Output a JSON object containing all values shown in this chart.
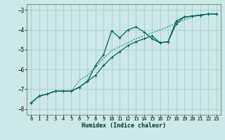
{
  "title": "",
  "xlabel": "Humidex (Indice chaleur)",
  "bg_color": "#cce8e8",
  "grid_color": "#aacccc",
  "line_color": "#006666",
  "xlim": [
    -0.5,
    23.5
  ],
  "ylim": [
    -8.3,
    -2.7
  ],
  "xticks": [
    0,
    1,
    2,
    3,
    4,
    5,
    6,
    7,
    8,
    9,
    10,
    11,
    12,
    13,
    14,
    15,
    16,
    17,
    18,
    19,
    20,
    21,
    22,
    23
  ],
  "yticks": [
    -8,
    -7,
    -6,
    -5,
    -4,
    -3
  ],
  "line1_x": [
    0,
    1,
    2,
    3,
    4,
    5,
    6,
    7,
    8,
    9,
    10,
    11,
    12,
    13,
    14,
    15,
    16,
    17,
    18,
    19,
    20,
    21,
    22,
    23
  ],
  "line1_y": [
    -7.7,
    -7.35,
    -7.25,
    -7.1,
    -7.1,
    -7.1,
    -6.9,
    -6.6,
    -5.8,
    -5.25,
    -4.05,
    -4.4,
    -4.0,
    -3.85,
    -4.1,
    -4.45,
    -4.65,
    -4.6,
    -3.7,
    -3.35,
    -3.3,
    -3.25,
    -3.2,
    -3.2
  ],
  "line2_x": [
    0,
    1,
    2,
    3,
    4,
    5,
    6,
    7,
    8,
    9,
    10,
    11,
    12,
    13,
    14,
    15,
    16,
    17,
    18,
    19,
    20,
    21,
    22,
    23
  ],
  "line2_y": [
    -7.7,
    -7.35,
    -7.25,
    -7.1,
    -7.1,
    -7.1,
    -6.55,
    -6.3,
    -5.9,
    -5.45,
    -5.05,
    -4.85,
    -4.65,
    -4.45,
    -4.3,
    -4.15,
    -4.0,
    -3.85,
    -3.65,
    -3.5,
    -3.35,
    -3.25,
    -3.2,
    -3.2
  ],
  "line3_x": [
    0,
    1,
    2,
    3,
    4,
    5,
    6,
    7,
    8,
    9,
    10,
    11,
    12,
    13,
    14,
    15,
    16,
    17,
    18,
    19,
    20,
    21,
    22,
    23
  ],
  "line3_y": [
    -7.7,
    -7.35,
    -7.25,
    -7.1,
    -7.1,
    -7.1,
    -6.9,
    -6.6,
    -6.3,
    -5.8,
    -5.4,
    -5.1,
    -4.8,
    -4.6,
    -4.45,
    -4.3,
    -4.65,
    -4.6,
    -3.55,
    -3.35,
    -3.3,
    -3.25,
    -3.2,
    -3.2
  ]
}
